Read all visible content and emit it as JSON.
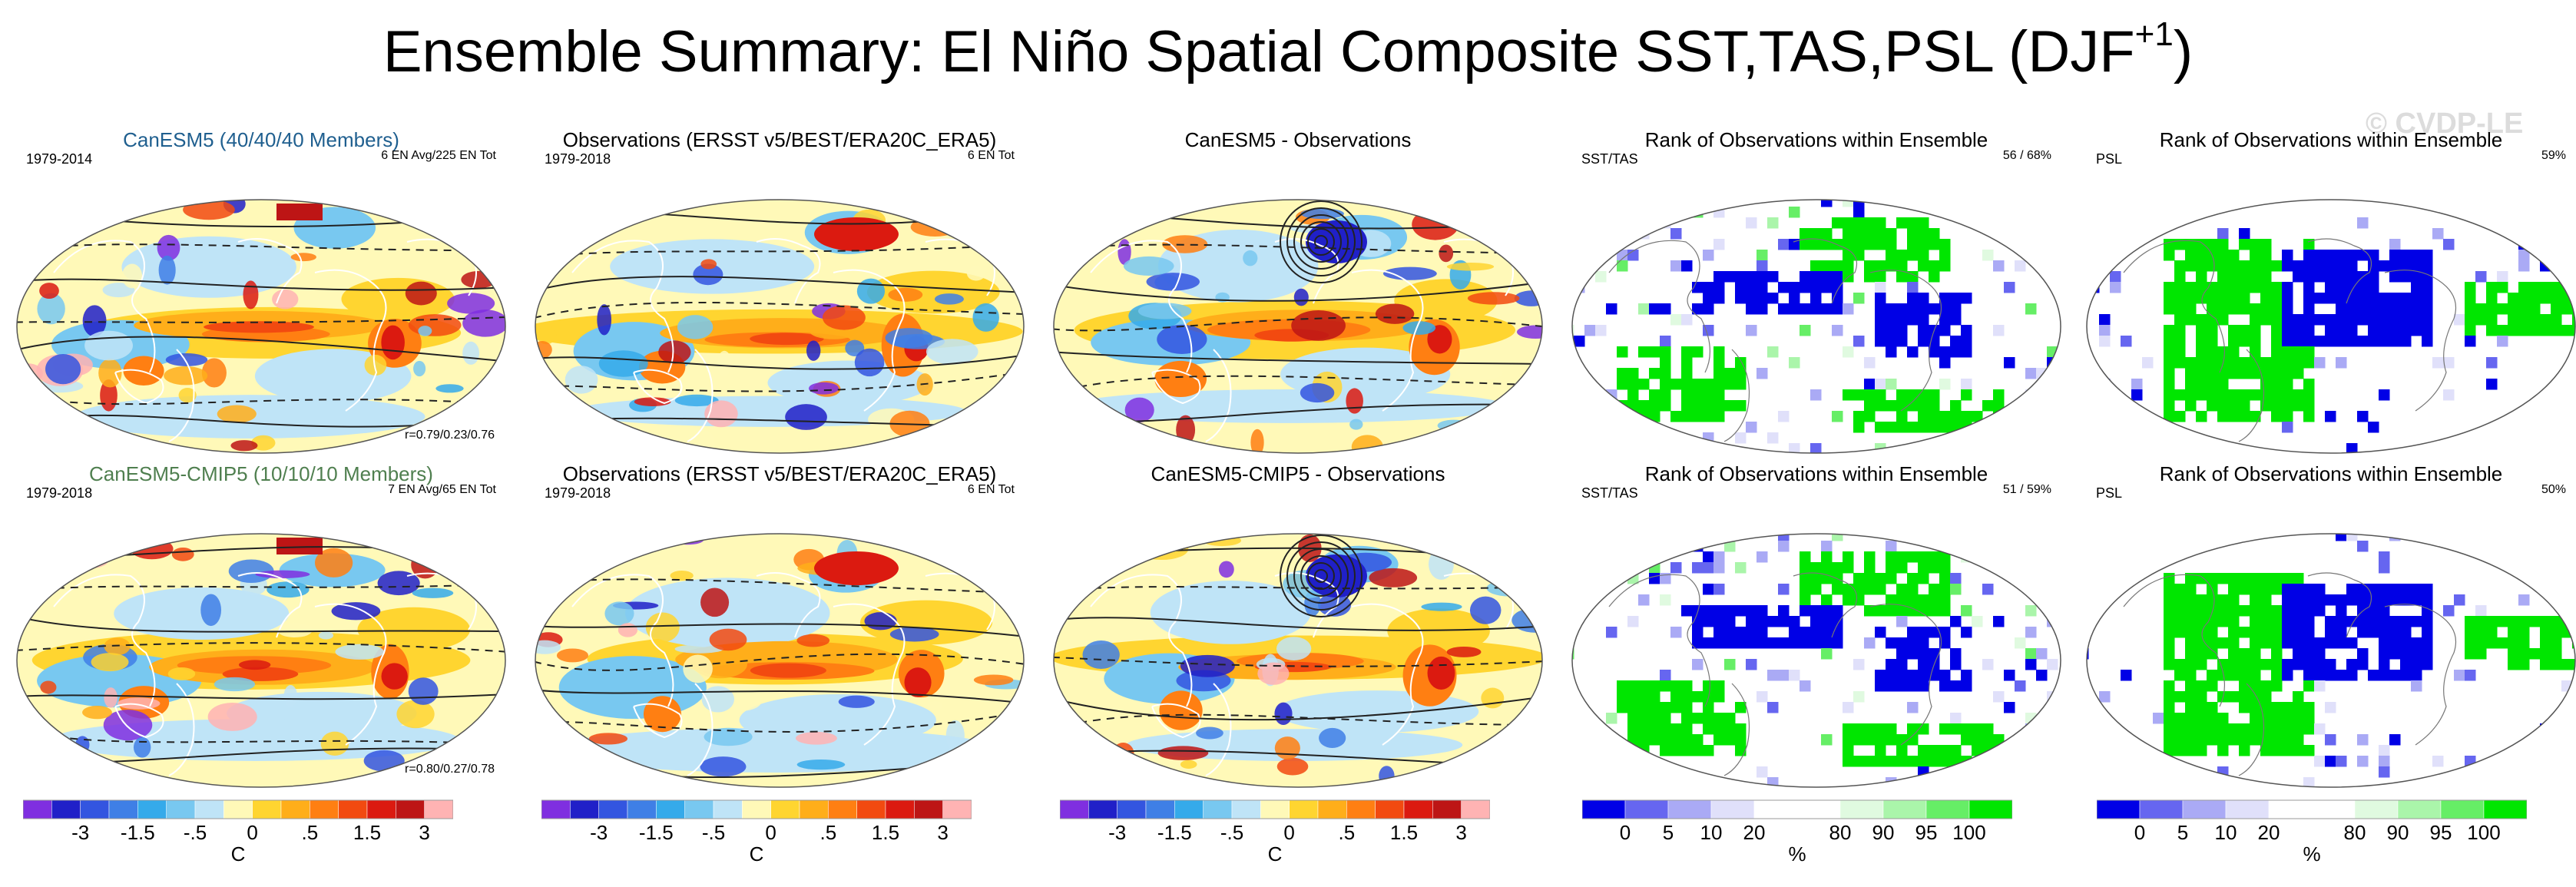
{
  "figure": {
    "title": "Ensemble Summary: El Niño Spatial Composite SST,TAS,PSL (DJF",
    "title_sup": "+1",
    "title_end": ")",
    "watermark": "© CVDP-LE"
  },
  "panels": [
    {
      "title": "CanESM5 (40/40/40 Members)",
      "title_color": "#1f5f8f",
      "left": "1979-2014",
      "right": "6 EN Avg/225 EN Tot",
      "corr": "r=0.79/0.23/0.76",
      "kind": "anom",
      "variant": 0
    },
    {
      "title": "Observations (ERSST v5/BEST/ERA20C_ERA5)",
      "title_color": "#000000",
      "left": "1979-2018",
      "right": "6 EN Tot",
      "corr": "",
      "kind": "anom",
      "variant": 1
    },
    {
      "title": "CanESM5 - Observations",
      "title_color": "#000000",
      "left": "",
      "right": "",
      "corr": "",
      "kind": "anom",
      "variant": 2
    },
    {
      "title": "Rank of Observations within Ensemble",
      "title_color": "#000000",
      "left": "SST/TAS",
      "right": "56 /  68%",
      "corr": "",
      "kind": "rank",
      "variant": 3
    },
    {
      "title": "Rank of Observations within Ensemble",
      "title_color": "#000000",
      "left": "PSL",
      "right": "59%",
      "corr": "",
      "kind": "rank",
      "variant": 4
    },
    {
      "title": "CanESM5-CMIP5 (10/10/10 Members)",
      "title_color": "#4f7f4f",
      "left": "1979-2018",
      "right": "7 EN Avg/65 EN Tot",
      "corr": "r=0.80/0.27/0.78",
      "kind": "anom",
      "variant": 5
    },
    {
      "title": "Observations (ERSST v5/BEST/ERA20C_ERA5)",
      "title_color": "#000000",
      "left": "1979-2018",
      "right": "6 EN Tot",
      "corr": "",
      "kind": "anom",
      "variant": 6
    },
    {
      "title": "CanESM5-CMIP5 - Observations",
      "title_color": "#000000",
      "left": "",
      "right": "",
      "corr": "",
      "kind": "anom",
      "variant": 7
    },
    {
      "title": "Rank of Observations within Ensemble",
      "title_color": "#000000",
      "left": "SST/TAS",
      "right": "51 /  59%",
      "corr": "",
      "kind": "rank",
      "variant": 8
    },
    {
      "title": "Rank of Observations within Ensemble",
      "title_color": "#000000",
      "left": "PSL",
      "right": "50%",
      "corr": "",
      "kind": "rank",
      "variant": 9
    }
  ],
  "colorbars": {
    "anomaly": {
      "unit": "C",
      "colors": [
        "#7f2fe0",
        "#2020c8",
        "#3355e0",
        "#3f7fe6",
        "#35aaea",
        "#78c8f0",
        "#bfe4f7",
        "#fff9b8",
        "#ffd530",
        "#ffae1a",
        "#ff7f12",
        "#f24a10",
        "#db1a10",
        "#bd1515",
        "#ffb3b3"
      ],
      "labels": [
        "-3",
        "-1.5",
        "-.5",
        "0",
        ".5",
        "1.5",
        "3"
      ],
      "label_edges": [
        2,
        4,
        6,
        8,
        10,
        12,
        14
      ]
    },
    "rank": {
      "unit": "%",
      "colors": [
        "#0000e6",
        "#6666f0",
        "#aaaaf5",
        "#e0e0fa",
        "#ffffff",
        "#ffffff",
        "#e0fae0",
        "#aaf5aa",
        "#66ee66",
        "#00e600"
      ],
      "labels": [
        "0",
        "5",
        "10",
        "20",
        "80",
        "90",
        "95",
        "100"
      ],
      "label_edges": [
        1,
        2,
        3,
        4,
        6,
        7,
        8,
        9
      ]
    }
  },
  "chart_data": [
    {
      "type": "heatmap",
      "panel": 1,
      "title": "CanESM5 (40/40/40 Members)",
      "period": "1979-2014",
      "variable": "SST/TAS anomaly with PSL contours",
      "units": "C",
      "color_levels": [
        -3,
        -1.5,
        -0.5,
        0,
        0.5,
        1.5,
        3
      ]
    },
    {
      "type": "heatmap",
      "panel": 2,
      "title": "Observations (ERSST v5/BEST/ERA20C_ERA5)",
      "period": "1979-2018",
      "units": "C"
    },
    {
      "type": "heatmap",
      "panel": 3,
      "title": "CanESM5 - Observations",
      "units": "C"
    },
    {
      "type": "heatmap",
      "panel": 4,
      "title": "Rank of Observations within Ensemble",
      "variable": "SST/TAS",
      "values_pct": [
        56,
        68
      ],
      "units": "%",
      "color_levels": [
        0,
        5,
        10,
        20,
        80,
        90,
        95,
        100
      ]
    },
    {
      "type": "heatmap",
      "panel": 5,
      "title": "Rank of Observations within Ensemble",
      "variable": "PSL",
      "values_pct": [
        59
      ],
      "units": "%"
    },
    {
      "type": "heatmap",
      "panel": 6,
      "title": "CanESM5-CMIP5 (10/10/10 Members)",
      "period": "1979-2018",
      "units": "C"
    },
    {
      "type": "heatmap",
      "panel": 7,
      "title": "Observations (ERSST v5/BEST/ERA20C_ERA5)",
      "period": "1979-2018",
      "units": "C"
    },
    {
      "type": "heatmap",
      "panel": 8,
      "title": "CanESM5-CMIP5 - Observations",
      "units": "C"
    },
    {
      "type": "heatmap",
      "panel": 9,
      "title": "Rank of Observations within Ensemble",
      "variable": "SST/TAS",
      "values_pct": [
        51,
        59
      ],
      "units": "%"
    },
    {
      "type": "heatmap",
      "panel": 10,
      "title": "Rank of Observations within Ensemble",
      "variable": "PSL",
      "values_pct": [
        50
      ],
      "units": "%"
    }
  ]
}
